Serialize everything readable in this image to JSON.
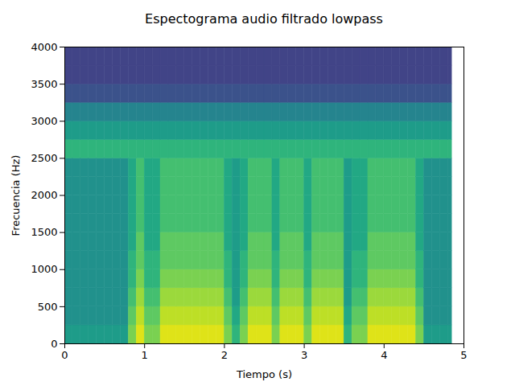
{
  "chart_data": {
    "type": "heatmap",
    "title": "Espectograma audio filtrado lowpass",
    "x_label": "Tiempo (s)",
    "y_label": "Frecuencia (Hz)",
    "xlim": [
      0,
      5
    ],
    "xticks": [
      0,
      1,
      2,
      3,
      4,
      5
    ],
    "ylim": [
      0,
      4000
    ],
    "yticks": [
      0,
      500,
      1000,
      1500,
      2000,
      2500,
      3000,
      3500,
      4000
    ],
    "grid": false,
    "color": "viridis",
    "color_range": [
      0,
      10
    ],
    "x_bins": [
      0,
      0.1,
      0.2,
      0.3,
      0.4,
      0.5,
      0.6,
      0.7,
      0.8,
      0.9,
      1.0,
      1.1,
      1.2,
      1.3,
      1.4,
      1.5,
      1.6,
      1.7,
      1.8,
      1.9,
      2.0,
      2.1,
      2.2,
      2.3,
      2.4,
      2.5,
      2.6,
      2.7,
      2.8,
      2.9,
      3.0,
      3.1,
      3.2,
      3.3,
      3.4,
      3.5,
      3.6,
      3.7,
      3.8,
      3.9,
      4.0,
      4.1,
      4.2,
      4.3,
      4.4,
      4.5,
      4.6,
      4.7,
      4.8,
      4.85
    ],
    "y_bins": [
      0,
      250,
      500,
      750,
      1000,
      1250,
      1500,
      1750,
      2000,
      2250,
      2500,
      2750,
      3000,
      3250,
      3500,
      3750,
      4000
    ],
    "cells": [
      [
        5.5,
        5,
        5,
        5,
        5,
        5,
        5,
        5,
        5,
        5,
        6.5,
        5.5,
        4.5,
        2.5,
        2,
        2
      ],
      [
        5.5,
        5,
        5,
        5,
        5,
        5,
        5,
        5,
        5,
        5,
        6.5,
        5.5,
        4.5,
        2.5,
        2,
        2
      ],
      [
        5.5,
        5,
        5,
        5,
        5,
        5,
        5,
        5,
        5,
        5,
        6.5,
        5.5,
        4.5,
        2.5,
        2,
        2
      ],
      [
        5.5,
        5,
        5,
        5,
        5,
        5,
        5,
        5,
        5,
        5,
        6.5,
        5.5,
        4.5,
        2.5,
        2,
        2
      ],
      [
        5.5,
        5,
        5,
        5,
        5,
        5,
        5,
        5,
        5,
        5,
        6.5,
        5.5,
        4.5,
        2.5,
        2,
        2
      ],
      [
        5.5,
        5,
        5,
        5,
        5,
        5,
        5,
        5,
        5,
        5,
        6.5,
        5.5,
        4.5,
        2.5,
        2,
        2
      ],
      [
        5.5,
        5,
        5,
        5,
        5,
        5,
        5,
        5,
        5,
        5,
        6.5,
        5.5,
        4.5,
        2.5,
        2,
        2
      ],
      [
        5.5,
        5,
        5,
        5,
        5,
        5,
        5,
        5,
        5,
        5,
        6.5,
        5.5,
        4.5,
        2.5,
        2,
        2
      ],
      [
        8,
        7.5,
        7,
        6.5,
        6.5,
        6,
        6,
        6,
        6,
        6,
        6.5,
        5.5,
        4.5,
        2.5,
        2,
        2
      ],
      [
        9.5,
        9,
        8.5,
        8,
        7.5,
        7.5,
        7,
        7,
        7,
        7,
        6.5,
        5.5,
        4.5,
        2.5,
        2,
        2
      ],
      [
        8,
        7.5,
        7,
        6.5,
        6.5,
        6,
        6,
        6,
        6,
        6,
        6.5,
        5.5,
        4.5,
        2.5,
        2,
        2
      ],
      [
        8,
        7.5,
        7,
        6.5,
        6.5,
        6,
        6,
        6,
        6,
        6,
        6.5,
        5.5,
        4.5,
        2.5,
        2,
        2
      ],
      [
        9.5,
        9,
        8.5,
        8,
        7.5,
        7.5,
        7,
        7,
        7,
        7,
        6.5,
        5.5,
        4.5,
        2.5,
        2,
        2
      ],
      [
        9.5,
        9,
        8.5,
        8,
        7.5,
        7.5,
        7,
        7,
        7,
        7,
        6.5,
        5.5,
        4.5,
        2.5,
        2,
        2
      ],
      [
        9.5,
        9,
        8.5,
        8,
        7.5,
        7.5,
        7,
        7,
        7,
        7,
        6.5,
        5.5,
        4.5,
        2.5,
        2,
        2
      ],
      [
        9.5,
        9,
        8.5,
        8,
        7.5,
        7.5,
        7,
        7,
        7,
        7,
        6.5,
        5.5,
        4.5,
        2.5,
        2,
        2
      ],
      [
        9.5,
        9,
        8.5,
        8,
        7.5,
        7.5,
        7,
        7,
        7,
        7,
        6.5,
        5.5,
        4.5,
        2.5,
        2,
        2
      ],
      [
        9.5,
        9,
        8.5,
        8,
        7.5,
        7.5,
        7,
        7,
        7,
        7,
        6.5,
        5.5,
        4.5,
        2.5,
        2,
        2
      ],
      [
        9.5,
        9,
        8.5,
        8,
        7.5,
        7.5,
        7,
        7,
        7,
        7,
        6.5,
        5.5,
        4.5,
        2.5,
        2,
        2
      ],
      [
        9.5,
        9,
        8.5,
        8,
        7.5,
        7.5,
        7,
        7,
        7,
        7,
        6.5,
        5.5,
        4.5,
        2.5,
        2,
        2
      ],
      [
        8,
        7.5,
        7,
        6.5,
        6.5,
        6,
        6,
        6,
        6,
        6,
        6.5,
        5.5,
        4.5,
        2.5,
        2,
        2
      ],
      [
        6.5,
        6,
        5.5,
        5.5,
        5.5,
        5.5,
        5.5,
        5.5,
        5.5,
        5.5,
        6.5,
        5.5,
        4.5,
        2.5,
        2,
        2
      ],
      [
        8,
        7.5,
        7,
        6.5,
        6.5,
        6,
        6,
        6,
        6,
        6,
        6.5,
        5.5,
        4.5,
        2.5,
        2,
        2
      ],
      [
        9.5,
        9,
        8.5,
        8,
        7.5,
        7.5,
        7,
        7,
        7,
        7,
        6.5,
        5.5,
        4.5,
        2.5,
        2,
        2
      ],
      [
        9.5,
        9,
        8.5,
        8,
        7.5,
        7.5,
        7,
        7,
        7,
        7,
        6.5,
        5.5,
        4.5,
        2.5,
        2,
        2
      ],
      [
        9.5,
        9,
        8.5,
        8,
        7.5,
        7.5,
        7,
        7,
        7,
        7,
        6.5,
        5.5,
        4.5,
        2.5,
        2,
        2
      ],
      [
        8,
        7.5,
        7,
        6.5,
        6.5,
        6,
        6,
        6,
        6,
        6,
        6.5,
        5.5,
        4.5,
        2.5,
        2,
        2
      ],
      [
        9.5,
        9,
        8.5,
        8,
        7.5,
        7.5,
        7,
        7,
        7,
        7,
        6.5,
        5.5,
        4.5,
        2.5,
        2,
        2
      ],
      [
        9.5,
        9,
        8.5,
        8,
        7.5,
        7.5,
        7,
        7,
        7,
        7,
        6.5,
        5.5,
        4.5,
        2.5,
        2,
        2
      ],
      [
        9.5,
        9,
        8.5,
        8,
        7.5,
        7.5,
        7,
        7,
        7,
        7,
        6.5,
        5.5,
        4.5,
        2.5,
        2,
        2
      ],
      [
        8,
        7.5,
        7,
        6.5,
        6.5,
        6,
        6,
        6,
        6,
        6,
        6.5,
        5.5,
        4.5,
        2.5,
        2,
        2
      ],
      [
        9.5,
        9,
        8.5,
        8,
        7.5,
        7.5,
        7,
        7,
        7,
        7,
        6.5,
        5.5,
        4.5,
        2.5,
        2,
        2
      ],
      [
        9.5,
        9,
        8.5,
        8,
        7.5,
        7.5,
        7,
        7,
        7,
        7,
        6.5,
        5.5,
        4.5,
        2.5,
        2,
        2
      ],
      [
        9.5,
        9,
        8.5,
        8,
        7.5,
        7.5,
        7,
        7,
        7,
        7,
        6.5,
        5.5,
        4.5,
        2.5,
        2,
        2
      ],
      [
        9.5,
        9,
        8.5,
        8,
        7.5,
        7.5,
        7,
        7,
        7,
        7,
        6.5,
        5.5,
        4.5,
        2.5,
        2,
        2
      ],
      [
        6.5,
        6,
        5.5,
        5.5,
        5.5,
        5.5,
        5.5,
        5.5,
        5.5,
        5.5,
        6.5,
        5.5,
        4.5,
        2.5,
        2,
        2
      ],
      [
        8,
        7.5,
        7,
        6.5,
        6.5,
        6,
        6,
        6,
        6,
        6,
        6.5,
        5.5,
        4.5,
        2.5,
        2,
        2
      ],
      [
        8,
        7.5,
        7,
        6.5,
        6.5,
        6,
        6,
        6,
        6,
        6,
        6.5,
        5.5,
        4.5,
        2.5,
        2,
        2
      ],
      [
        9.5,
        9,
        8.5,
        8,
        7.5,
        7.5,
        7,
        7,
        7,
        7,
        6.5,
        5.5,
        4.5,
        2.5,
        2,
        2
      ],
      [
        9.5,
        9,
        8.5,
        8,
        7.5,
        7.5,
        7,
        7,
        7,
        7,
        6.5,
        5.5,
        4.5,
        2.5,
        2,
        2
      ],
      [
        9.5,
        9,
        8.5,
        8,
        7.5,
        7.5,
        7,
        7,
        7,
        7,
        6.5,
        5.5,
        4.5,
        2.5,
        2,
        2
      ],
      [
        9.5,
        9,
        8.5,
        8,
        7.5,
        7.5,
        7,
        7,
        7,
        7,
        6.5,
        5.5,
        4.5,
        2.5,
        2,
        2
      ],
      [
        9.5,
        9,
        8.5,
        8,
        7.5,
        7.5,
        7,
        7,
        7,
        7,
        6.5,
        5.5,
        4.5,
        2.5,
        2,
        2
      ],
      [
        9.5,
        9,
        8.5,
        8,
        7.5,
        7.5,
        7,
        7,
        7,
        7,
        6.5,
        5.5,
        4.5,
        2.5,
        2,
        2
      ],
      [
        8,
        7.5,
        7,
        6.5,
        6.5,
        6,
        6,
        6,
        6,
        6,
        6.5,
        5.5,
        4.5,
        2.5,
        2,
        2
      ],
      [
        5.5,
        5,
        5,
        5,
        5,
        5,
        5,
        5,
        5,
        5,
        6.5,
        5.5,
        4.5,
        2.5,
        2,
        2
      ],
      [
        5.5,
        5,
        5,
        5,
        5,
        5,
        5,
        5,
        5,
        5,
        6.5,
        5.5,
        4.5,
        2.5,
        2,
        2
      ],
      [
        5.5,
        5,
        5,
        5,
        5,
        5,
        5,
        5,
        5,
        5,
        6.5,
        5.5,
        4.5,
        2.5,
        2,
        2
      ],
      [
        5.5,
        5,
        5,
        5,
        5,
        5,
        5,
        5,
        5,
        5,
        6.5,
        5.5,
        4.5,
        2.5,
        2,
        2
      ]
    ]
  }
}
